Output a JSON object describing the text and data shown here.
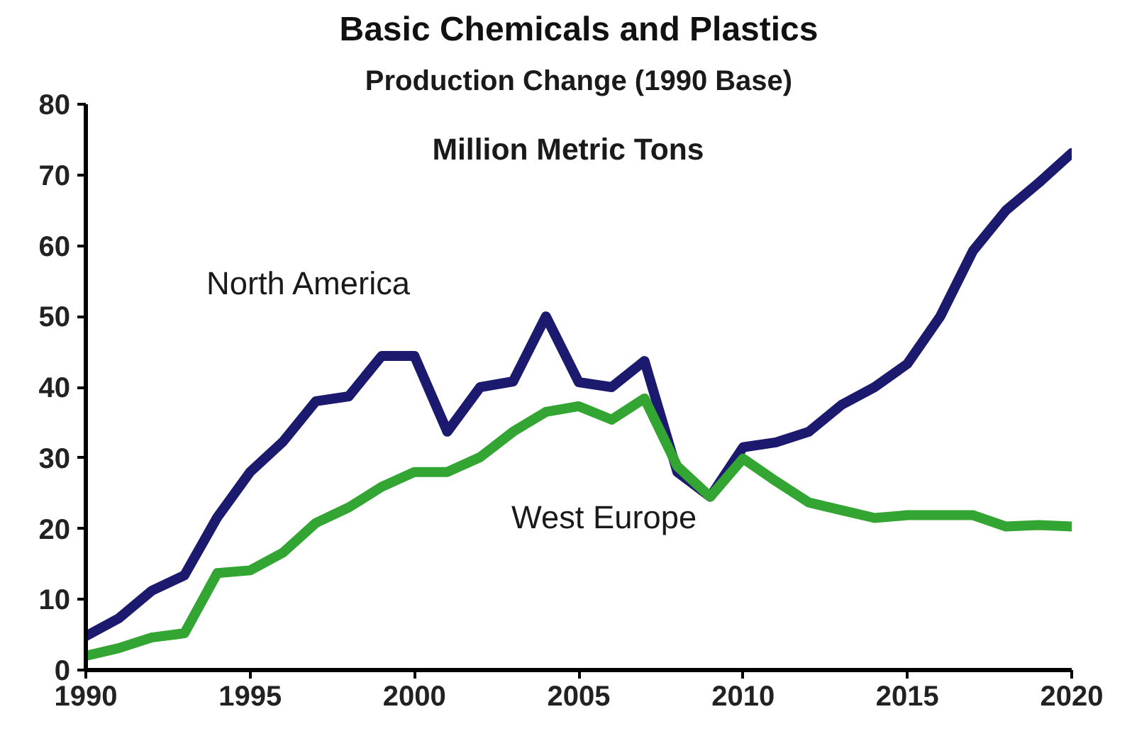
{
  "chart_data": {
    "type": "line",
    "title": "Basic Chemicals and Plastics",
    "subtitle": "Production Change (1990 Base)",
    "ylabel": "Million Metric Tons",
    "x": [
      1990,
      1991,
      1992,
      1993,
      1994,
      1995,
      1996,
      1997,
      1998,
      1999,
      2000,
      2001,
      2002,
      2003,
      2004,
      2005,
      2006,
      2007,
      2008,
      2009,
      2010,
      2011,
      2012,
      2013,
      2014,
      2015,
      2016,
      2017,
      2018,
      2019,
      2020
    ],
    "series": [
      {
        "name": "North America",
        "color": "#1c1a6e",
        "values": [
          4.8,
          7.3,
          11.2,
          13.4,
          21.6,
          28,
          32.3,
          38,
          38.7,
          44.4,
          44.4,
          33.7,
          40,
          40.8,
          50,
          40.7,
          40,
          43.7,
          28,
          24.5,
          31.5,
          32.2,
          33.7,
          37.5,
          40,
          43.3,
          50,
          59.3,
          65,
          68.9,
          73.1
        ]
      },
      {
        "name": "West Europe",
        "color": "#33a532",
        "values": [
          2,
          3.1,
          4.6,
          5.2,
          13.7,
          14.1,
          16.6,
          20.8,
          23,
          25.9,
          28,
          28,
          30.1,
          33.7,
          36.5,
          37.3,
          35.4,
          38.4,
          28.8,
          24.5,
          29.9,
          26.7,
          23.7,
          22.6,
          21.5,
          21.9,
          21.9,
          21.9,
          20.3,
          20.5,
          20.3
        ]
      }
    ],
    "xlim": [
      1990,
      2020
    ],
    "xticks": [
      1990,
      1995,
      2000,
      2005,
      2010,
      2015,
      2020
    ],
    "ylim": [
      0,
      80
    ],
    "yticks": [
      0,
      10,
      20,
      30,
      40,
      50,
      60,
      70,
      80
    ],
    "grid": false,
    "legend": false,
    "marker": "none",
    "line_style": "solid"
  }
}
